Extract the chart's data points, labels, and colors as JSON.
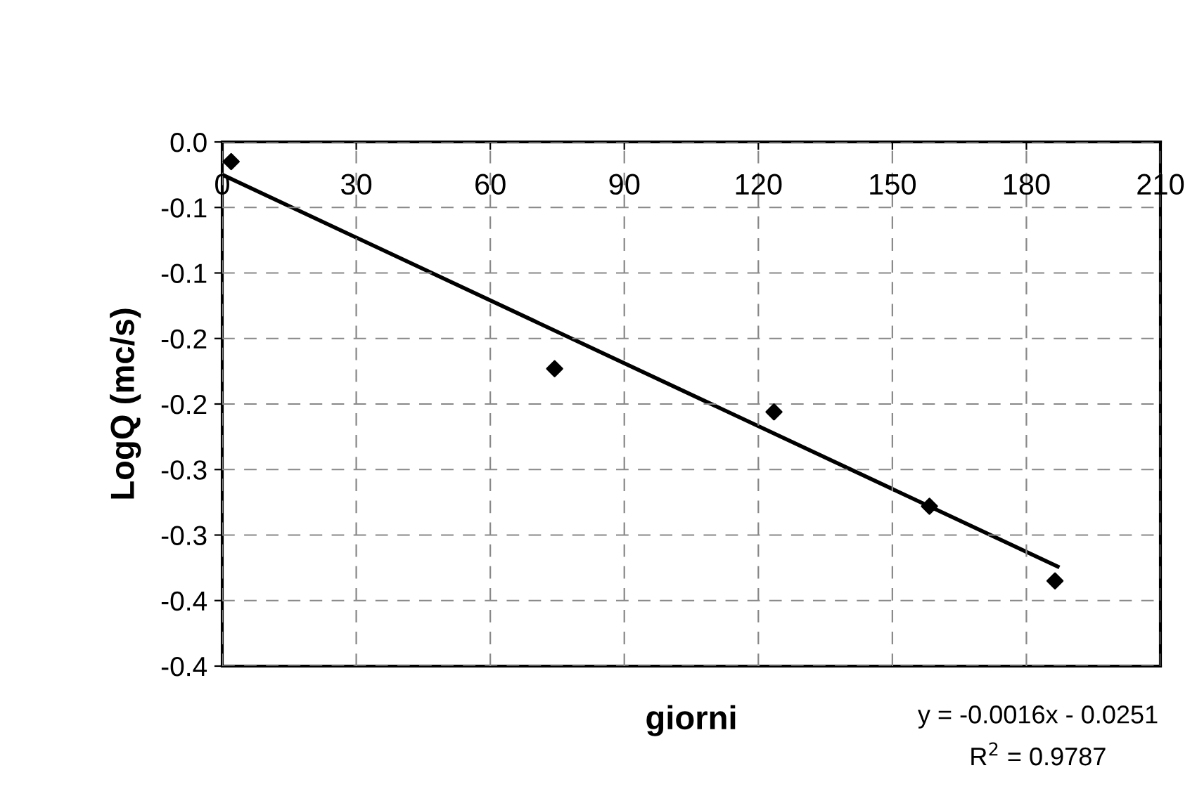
{
  "chart_data": {
    "type": "scatter",
    "xlabel": "giorni",
    "ylabel": "LogQ (mc/s)",
    "x": [
      2,
      74.4,
      123.5,
      158.3,
      186.4
    ],
    "series": [
      {
        "color": "#000000",
        "marker": "diamond",
        "values": [
          -0.015,
          -0.173,
          -0.206,
          -0.278,
          -0.335
        ]
      },
      {
        "type": "line",
        "color": "#000000",
        "marker": "none",
        "line_style": "solid",
        "x": [
          0,
          187
        ],
        "values": [
          -0.025,
          -0.324
        ]
      }
    ],
    "xlim": [
      0,
      210
    ],
    "xticks": [
      0,
      30,
      60,
      90,
      120,
      150,
      180,
      210
    ],
    "ylim": [
      -0.4,
      0
    ],
    "yticks": [
      {
        "value": 0,
        "label": "0.0"
      },
      {
        "value": -0.05,
        "label": "-0.1"
      },
      {
        "value": -0.1,
        "label": "-0.1"
      },
      {
        "value": -0.15,
        "label": "-0.2"
      },
      {
        "value": -0.2,
        "label": "-0.2"
      },
      {
        "value": -0.25,
        "label": "-0.3"
      },
      {
        "value": -0.3,
        "label": "-0.3"
      },
      {
        "value": -0.35,
        "label": "-0.4"
      },
      {
        "value": -0.4,
        "label": "-0.4"
      }
    ],
    "grid": true,
    "annotations": [
      "y = -0.0016x - 0.0251",
      "R$^{2}$ = 0.9787"
    ]
  }
}
